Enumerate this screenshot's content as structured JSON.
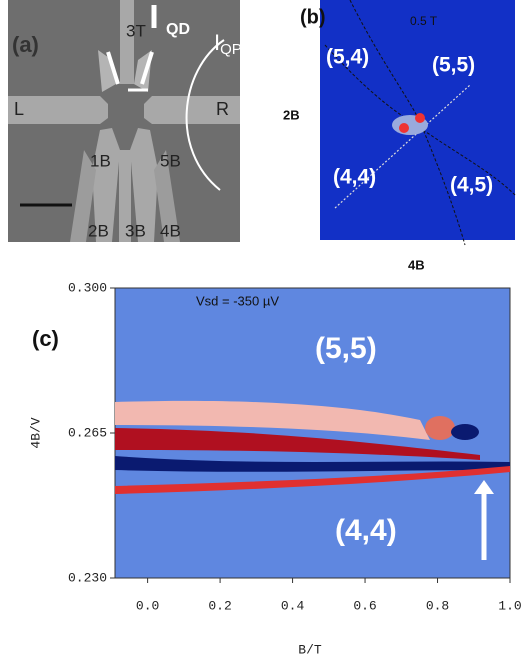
{
  "panel_a": {
    "label": "(a)",
    "gates": [
      "3T",
      "L",
      "R",
      "1B",
      "5B",
      "2B",
      "3B",
      "4B"
    ],
    "qd": "QD",
    "current": {
      "main": "I",
      "sub": "QPC"
    }
  },
  "panel_b": {
    "label": "(b)",
    "field": "0.5 T",
    "states": [
      "(5,4)",
      "(5,5)",
      "(4,4)",
      "(4,5)"
    ],
    "x_axis_label": "4B",
    "y_axis_label": "2B"
  },
  "chart_data": {
    "type": "heatmap",
    "panel_label": "(c)",
    "annotation": "Vsd = -350 µV",
    "states": [
      "(5,5)",
      "(4,4)"
    ],
    "x_label": "B/T",
    "y_label": "4B/V",
    "xlim": [
      -0.09,
      1.0
    ],
    "xticks": [
      {
        "value": 0,
        "label": "0.0"
      },
      0.2,
      0.4,
      0.6,
      0.8,
      {
        "value": 1,
        "label": "1.0"
      }
    ],
    "ylim": [
      0.23,
      0.3
    ],
    "yticks": [
      {
        "value": 0.23,
        "label": "0.230"
      },
      0.265,
      {
        "value": 0.3,
        "label": "0.300"
      }
    ]
  }
}
